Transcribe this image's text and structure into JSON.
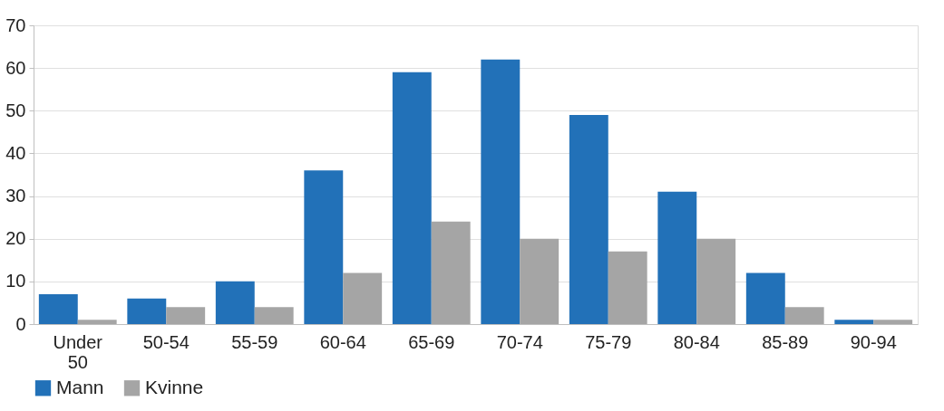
{
  "chart_data": {
    "type": "bar",
    "categories": [
      "Under 50",
      "50-54",
      "55-59",
      "60-64",
      "65-69",
      "70-74",
      "75-79",
      "80-84",
      "85-89",
      "90-94"
    ],
    "series": [
      {
        "name": "Mann",
        "color": "#2271b8",
        "values": [
          7,
          6,
          10,
          36,
          59,
          62,
          49,
          31,
          12,
          1
        ]
      },
      {
        "name": "Kvinne",
        "color": "#a5a5a5",
        "values": [
          1,
          4,
          4,
          12,
          24,
          20,
          17,
          20,
          4,
          1
        ]
      }
    ],
    "ylim": [
      0,
      70
    ],
    "yticks": [
      0,
      10,
      20,
      30,
      40,
      50,
      60,
      70
    ],
    "grid": "y",
    "legend": "bottom"
  }
}
